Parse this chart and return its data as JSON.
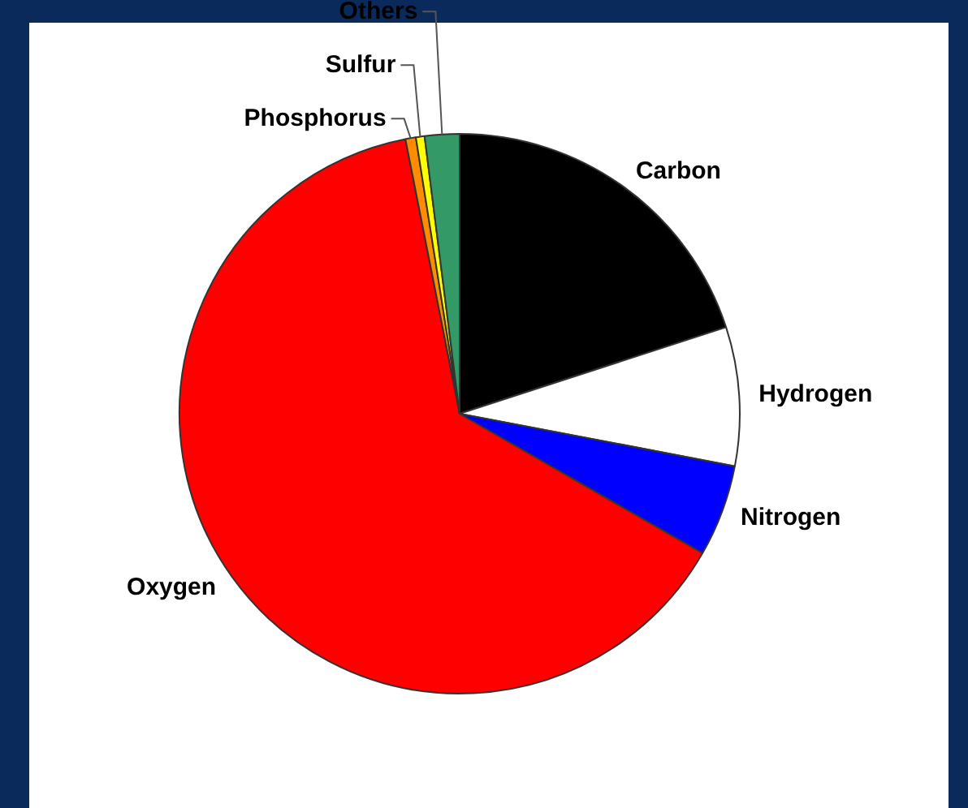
{
  "chart_data": {
    "type": "pie",
    "categories": [
      "Carbon",
      "Hydrogen",
      "Nitrogen",
      "Oxygen",
      "Phosphorus",
      "Sulfur",
      "Others"
    ],
    "values": [
      20,
      8,
      5.3,
      63.6,
      0.6,
      0.5,
      2
    ],
    "colors": [
      "#000000",
      "#ffffff",
      "#0000ff",
      "#ff0000",
      "#ff8c00",
      "#ffff00",
      "#339966"
    ],
    "legend": false
  }
}
